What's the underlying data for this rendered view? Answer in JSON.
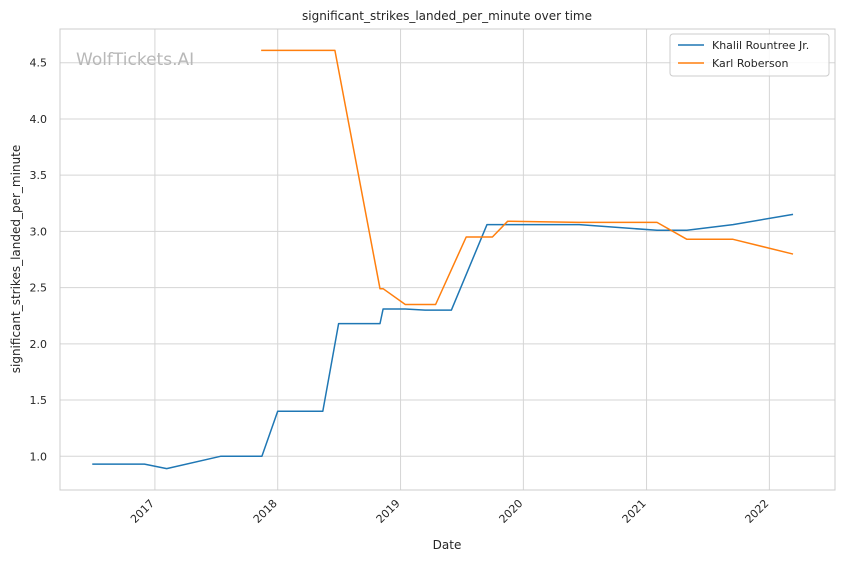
{
  "chart_data": {
    "type": "line",
    "title": "significant_strikes_landed_per_minute over time",
    "xlabel": "Date",
    "ylabel": "significant_strikes_landed_per_minute",
    "watermark": "WolfTickets.AI",
    "xlim": [
      "2016-03-25",
      "2022-07-15"
    ],
    "ylim": [
      0.7,
      4.8
    ],
    "x_ticks": [
      "2017-01-01",
      "2018-01-01",
      "2019-01-01",
      "2020-01-01",
      "2021-01-01",
      "2022-01-01"
    ],
    "x_tick_labels": [
      "2017",
      "2018",
      "2019",
      "2020",
      "2021",
      "2022"
    ],
    "y_ticks": [
      1.0,
      1.5,
      2.0,
      2.5,
      3.0,
      3.5,
      4.0,
      4.5
    ],
    "y_tick_labels": [
      "1.0",
      "1.5",
      "2.0",
      "2.5",
      "3.0",
      "3.5",
      "4.0",
      "4.5"
    ],
    "grid": true,
    "legend_position": "top-right",
    "series": [
      {
        "name": "Khalil Rountree Jr.",
        "color": "#1f77b4",
        "x": [
          "2016-07-01",
          "2016-12-01",
          "2017-02-05",
          "2017-07-15",
          "2017-11-15",
          "2018-01-01",
          "2018-05-15",
          "2018-07-01",
          "2018-11-01",
          "2018-11-10",
          "2019-01-15",
          "2019-03-15",
          "2019-06-01",
          "2019-09-15",
          "2019-11-01",
          "2020-06-15",
          "2021-02-01",
          "2021-05-01",
          "2021-09-15",
          "2022-03-10"
        ],
        "y": [
          0.93,
          0.93,
          0.89,
          1.0,
          1.0,
          1.4,
          1.4,
          2.18,
          2.18,
          2.31,
          2.31,
          2.3,
          2.3,
          3.06,
          3.06,
          3.06,
          3.01,
          3.01,
          3.06,
          3.15
        ]
      },
      {
        "name": "Karl Roberson",
        "color": "#ff7f0e",
        "x": [
          "2017-11-15",
          "2018-06-20",
          "2018-11-01",
          "2018-11-10",
          "2019-01-15",
          "2019-04-15",
          "2019-07-15",
          "2019-10-01",
          "2019-11-15",
          "2020-06-15",
          "2021-02-01",
          "2021-05-01",
          "2021-09-15",
          "2022-03-10"
        ],
        "y": [
          4.61,
          4.61,
          2.49,
          2.49,
          2.35,
          2.35,
          2.95,
          2.95,
          3.09,
          3.08,
          3.08,
          2.93,
          2.93,
          2.8
        ]
      }
    ]
  }
}
